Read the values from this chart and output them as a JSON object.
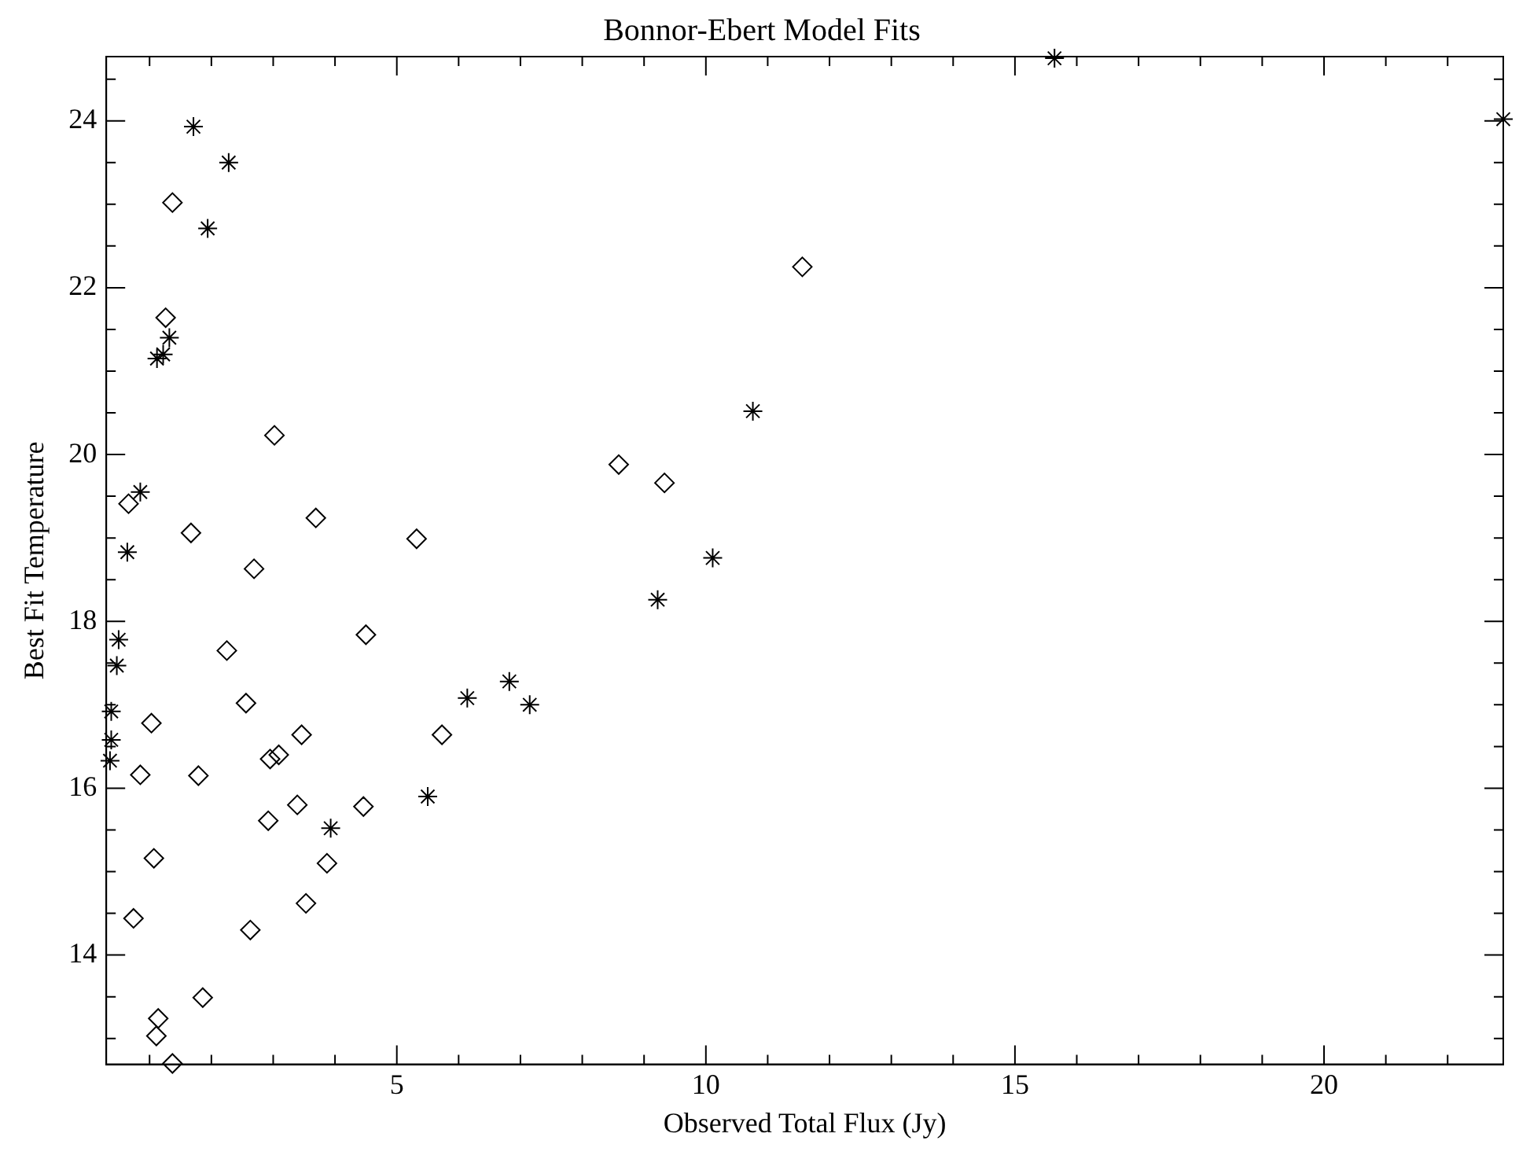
{
  "chart_data": {
    "type": "scatter",
    "title": "Bonnor-Ebert Model Fits",
    "xlabel": "Observed Total Flux (Jy)",
    "ylabel": "Best Fit Temperature",
    "xlim": [
      0.3,
      22.9
    ],
    "ylim": [
      12.69,
      24.77
    ],
    "xticks": [
      {
        "value": 1,
        "label": null
      },
      {
        "value": 2,
        "label": null
      },
      {
        "value": 3,
        "label": null
      },
      {
        "value": 4,
        "label": null
      },
      5,
      {
        "value": 6,
        "label": null
      },
      {
        "value": 7,
        "label": null
      },
      {
        "value": 8,
        "label": null
      },
      {
        "value": 9,
        "label": null
      },
      10,
      {
        "value": 11,
        "label": null
      },
      {
        "value": 12,
        "label": null
      },
      {
        "value": 13,
        "label": null
      },
      {
        "value": 14,
        "label": null
      },
      15,
      {
        "value": 16,
        "label": null
      },
      {
        "value": 17,
        "label": null
      },
      {
        "value": 18,
        "label": null
      },
      {
        "value": 19,
        "label": null
      },
      20,
      {
        "value": 21,
        "label": null
      },
      {
        "value": 22,
        "label": null
      }
    ],
    "yticks": [
      {
        "value": 13,
        "label": null
      },
      {
        "value": 13.5,
        "label": null
      },
      14,
      {
        "value": 14.5,
        "label": null
      },
      {
        "value": 15,
        "label": null
      },
      {
        "value": 15.5,
        "label": null
      },
      16,
      {
        "value": 16.5,
        "label": null
      },
      {
        "value": 17,
        "label": null
      },
      {
        "value": 17.5,
        "label": null
      },
      18,
      {
        "value": 18.5,
        "label": null
      },
      {
        "value": 19,
        "label": null
      },
      {
        "value": 19.5,
        "label": null
      },
      20,
      {
        "value": 20.5,
        "label": null
      },
      {
        "value": 21,
        "label": null
      },
      {
        "value": 21.5,
        "label": null
      },
      22,
      {
        "value": 22.5,
        "label": null
      },
      {
        "value": 23,
        "label": null
      },
      {
        "value": 23.5,
        "label": null
      },
      24,
      {
        "value": 24.5,
        "label": null
      }
    ],
    "grid": false,
    "legend": false,
    "series": [
      {
        "type": "scatter",
        "marker": "diamond",
        "color": "#000000",
        "x": [
          1.37,
          1.26,
          3.02,
          0.66,
          1.67,
          3.69,
          5.32,
          2.69,
          4.5,
          2.25,
          2.56,
          1.03,
          3.46,
          5.73,
          2.95,
          3.09,
          0.85,
          1.79,
          3.39,
          4.46,
          2.92,
          1.07,
          3.87,
          3.53,
          0.74,
          2.63,
          1.86,
          1.14,
          1.11,
          1.37,
          11.56,
          8.59,
          9.33
        ],
        "values": [
          23.02,
          21.64,
          20.23,
          19.41,
          19.06,
          19.24,
          18.99,
          18.63,
          17.84,
          17.65,
          17.02,
          16.78,
          16.64,
          16.64,
          16.35,
          16.4,
          16.16,
          16.15,
          15.8,
          15.78,
          15.61,
          15.16,
          15.1,
          14.62,
          14.44,
          14.3,
          13.49,
          13.24,
          13.03,
          12.7,
          22.25,
          19.88,
          19.66
        ]
      },
      {
        "type": "scatter",
        "marker": "cross",
        "color": "#000000",
        "x": [
          1.71,
          2.28,
          1.94,
          1.32,
          1.12,
          1.22,
          0.85,
          0.64,
          0.5,
          0.47,
          0.38,
          0.38,
          0.36,
          3.93,
          5.5,
          6.14,
          6.82,
          7.15,
          10.76,
          10.11,
          9.22,
          15.64,
          22.9
        ],
        "values": [
          23.93,
          23.5,
          22.71,
          21.4,
          21.15,
          21.2,
          19.55,
          18.83,
          17.78,
          17.47,
          16.92,
          16.58,
          16.33,
          15.52,
          15.9,
          17.08,
          17.28,
          17.0,
          20.52,
          18.76,
          18.26,
          24.75,
          24.02
        ]
      }
    ]
  }
}
